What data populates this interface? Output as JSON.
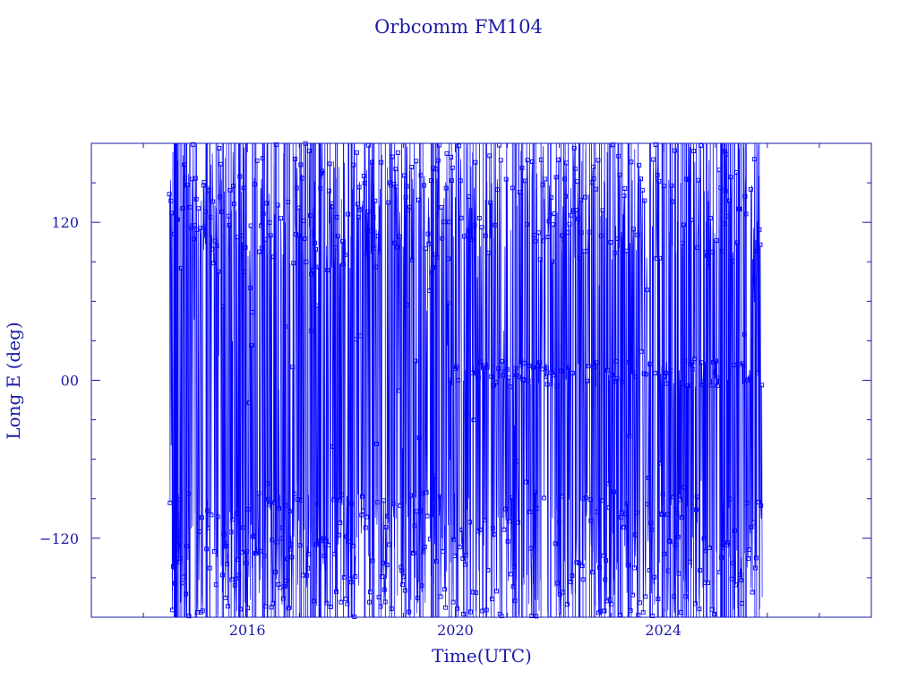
{
  "chart_data": {
    "type": "line",
    "title": "Orbcomm FM104",
    "xlabel": "Time(UTC)",
    "ylabel": "Long E (deg)",
    "xlim": [
      2013.0,
      2028.0
    ],
    "ylim": [
      -180,
      180
    ],
    "x_ticks": [
      {
        "value": 2016,
        "label": "2016"
      },
      {
        "value": 2020,
        "label": "2020"
      },
      {
        "value": 2024,
        "label": "2024"
      }
    ],
    "y_ticks": [
      {
        "value": 120,
        "label": "120"
      },
      {
        "value": 0,
        "label": "00"
      },
      {
        "value": -120,
        "label": "−120"
      }
    ],
    "data_start": 2014.5,
    "data_end": 2025.9,
    "marker": "open-square",
    "colors": {
      "series": "#0000ff",
      "axis": "#1a1aa8"
    },
    "series": [
      {
        "regime_summary": [
          {
            "x_range": [
              2014.5,
              2019.9
            ],
            "upper_band_deg": [
              80,
              180
            ],
            "lower_band_deg": [
              -180,
              -85
            ]
          },
          {
            "x_range": [
              2019.9,
              2025.9
            ],
            "upper_band_deg": [
              90,
              180
            ],
            "middle_band_deg": [
              -5,
              15
            ],
            "lower_band_deg": [
              -180,
              -85
            ]
          }
        ]
      }
    ]
  }
}
